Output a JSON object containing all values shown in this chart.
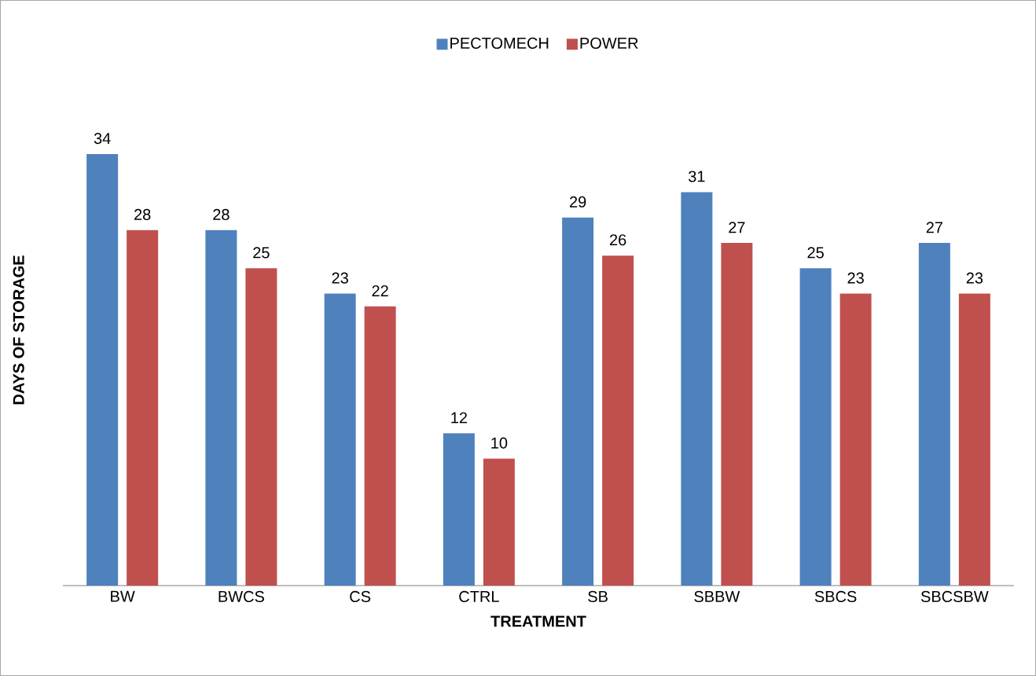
{
  "chart_data": {
    "type": "bar",
    "xlabel": "TREATMENT",
    "ylabel": "DAYS OF STORAGE",
    "categories": [
      "BW",
      "BWCS",
      "CS",
      "CTRL",
      "SB",
      "SBBW",
      "SBCS",
      "SBCSBW"
    ],
    "series": [
      {
        "name": "PECTOMECH",
        "color": "#4f81bd",
        "values": [
          34,
          28,
          23,
          12,
          29,
          31,
          25,
          27
        ]
      },
      {
        "name": "POWER",
        "color": "#c0504d",
        "values": [
          28,
          25,
          22,
          10,
          26,
          27,
          23,
          23
        ]
      }
    ],
    "data_labels": true,
    "legend": "top",
    "tick_labels": "x"
  }
}
